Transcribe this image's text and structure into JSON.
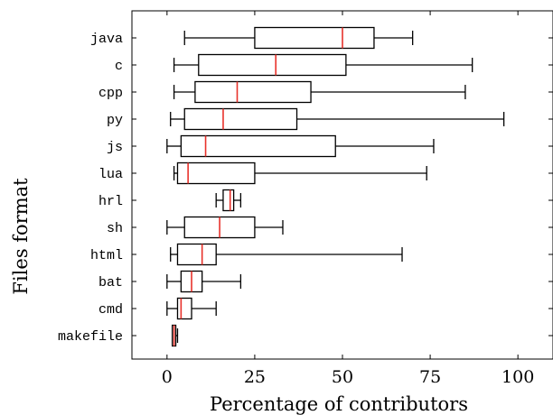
{
  "chart_data": {
    "type": "box",
    "orientation": "horizontal",
    "xlabel": "Percentage of contributors",
    "ylabel": "Files format",
    "xlim": [
      -10,
      110
    ],
    "xticks": [
      0,
      25,
      50,
      75,
      100
    ],
    "grid": "none",
    "colors": {
      "box": "#000000",
      "median": "#e8322b"
    },
    "categories": [
      "java",
      "c",
      "cpp",
      "py",
      "js",
      "lua",
      "hrl",
      "sh",
      "html",
      "bat",
      "cmd",
      "makefile"
    ],
    "boxes": [
      {
        "category": "java",
        "whisker_low": 5,
        "q1": 25,
        "median": 50,
        "q3": 59,
        "whisker_high": 70
      },
      {
        "category": "c",
        "whisker_low": 2,
        "q1": 9,
        "median": 31,
        "q3": 51,
        "whisker_high": 87
      },
      {
        "category": "cpp",
        "whisker_low": 2,
        "q1": 8,
        "median": 20,
        "q3": 41,
        "whisker_high": 85
      },
      {
        "category": "py",
        "whisker_low": 1,
        "q1": 5,
        "median": 16,
        "q3": 37,
        "whisker_high": 96
      },
      {
        "category": "js",
        "whisker_low": 0,
        "q1": 4,
        "median": 11,
        "q3": 48,
        "whisker_high": 76
      },
      {
        "category": "lua",
        "whisker_low": 2,
        "q1": 3,
        "median": 6,
        "q3": 25,
        "whisker_high": 74
      },
      {
        "category": "hrl",
        "whisker_low": 14,
        "q1": 16,
        "median": 18,
        "q3": 19,
        "whisker_high": 21
      },
      {
        "category": "sh",
        "whisker_low": 0,
        "q1": 5,
        "median": 15,
        "q3": 25,
        "whisker_high": 33
      },
      {
        "category": "html",
        "whisker_low": 1,
        "q1": 3,
        "median": 10,
        "q3": 14,
        "whisker_high": 67
      },
      {
        "category": "bat",
        "whisker_low": 0,
        "q1": 4,
        "median": 7,
        "q3": 10,
        "whisker_high": 21
      },
      {
        "category": "cmd",
        "whisker_low": 0,
        "q1": 3,
        "median": 4,
        "q3": 7,
        "whisker_high": 14
      },
      {
        "category": "makefile",
        "whisker_low": 1.5,
        "q1": 1.5,
        "median": 2,
        "q3": 2.5,
        "whisker_high": 3
      }
    ]
  }
}
